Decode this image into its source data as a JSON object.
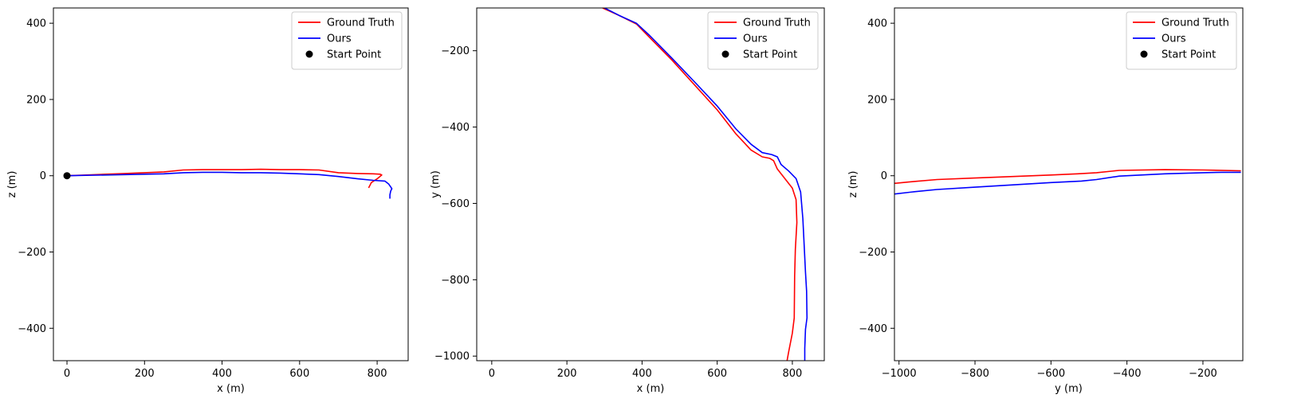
{
  "chart_data": [
    {
      "type": "line",
      "xlabel": "x (m)",
      "ylabel": "z (m)",
      "xlim": [
        -35,
        880
      ],
      "ylim": [
        -485,
        440
      ],
      "xticks": [
        0,
        200,
        400,
        600,
        800
      ],
      "yticks": [
        400,
        200,
        0,
        -200,
        -400
      ],
      "xtick_labels": [
        "0",
        "200",
        "400",
        "600",
        "800"
      ],
      "ytick_labels": [
        "400",
        "200",
        "0",
        "−200",
        "−400"
      ],
      "legend": {
        "position": "top-right"
      },
      "series": [
        {
          "name": "Ground Truth",
          "color": "#ff0000",
          "x": [
            0,
            50,
            100,
            150,
            200,
            250,
            300,
            350,
            400,
            450,
            500,
            550,
            600,
            650,
            700,
            750,
            790,
            808,
            812,
            800,
            785,
            778
          ],
          "y": [
            0,
            2,
            4,
            6,
            8,
            10,
            15,
            16,
            16,
            16,
            17,
            16,
            16,
            15,
            8,
            6,
            5,
            4,
            2,
            -8,
            -18,
            -32
          ]
        },
        {
          "name": "Ours",
          "color": "#0000ff",
          "x": [
            0,
            50,
            100,
            150,
            200,
            250,
            300,
            350,
            400,
            450,
            500,
            550,
            600,
            650,
            700,
            750,
            790,
            820,
            830,
            838,
            835,
            833,
            833
          ],
          "y": [
            0,
            1,
            2,
            3,
            4,
            5,
            8,
            9,
            9,
            8,
            8,
            7,
            5,
            3,
            -2,
            -8,
            -12,
            -14,
            -22,
            -34,
            -40,
            -50,
            -60
          ]
        },
        {
          "name": "Start Point",
          "color": "#000000",
          "marker": "circle",
          "x": [
            0
          ],
          "y": [
            0
          ]
        }
      ]
    },
    {
      "type": "line",
      "xlabel": "x (m)",
      "ylabel": "y (m)",
      "xlim": [
        -40,
        885
      ],
      "ylim": [
        -1012,
        -88
      ],
      "xticks": [
        0,
        200,
        400,
        600,
        800
      ],
      "yticks": [
        -200,
        -400,
        -600,
        -800,
        -1000
      ],
      "xtick_labels": [
        "0",
        "200",
        "400",
        "600",
        "800"
      ],
      "ytick_labels": [
        "−200",
        "−400",
        "−600",
        "−800",
        "−1000"
      ],
      "legend": {
        "position": "top-right"
      },
      "series": [
        {
          "name": "Ground Truth",
          "color": "#ff0000",
          "x": [
            295,
            340,
            385,
            420,
            480,
            540,
            600,
            650,
            690,
            720,
            740,
            750,
            760,
            780,
            800,
            810,
            812,
            808,
            806,
            805,
            800,
            790,
            786
          ],
          "y": [
            -88,
            -108,
            -130,
            -165,
            -225,
            -290,
            -355,
            -418,
            -460,
            -478,
            -482,
            -488,
            -510,
            -535,
            -560,
            -590,
            -650,
            -720,
            -790,
            -900,
            -940,
            -990,
            -1012
          ]
        },
        {
          "name": "Ours",
          "color": "#0000ff",
          "x": [
            300,
            340,
            385,
            420,
            480,
            540,
            600,
            650,
            690,
            720,
            745,
            760,
            770,
            790,
            810,
            822,
            828,
            832,
            835,
            838,
            839,
            835,
            833,
            833
          ],
          "y": [
            -88,
            -108,
            -128,
            -160,
            -220,
            -282,
            -345,
            -405,
            -445,
            -467,
            -472,
            -478,
            -498,
            -515,
            -535,
            -570,
            -640,
            -720,
            -780,
            -830,
            -900,
            -930,
            -980,
            -1012
          ]
        },
        {
          "name": "Start Point",
          "color": "#000000",
          "marker": "circle",
          "x": [],
          "y": []
        }
      ]
    },
    {
      "type": "line",
      "xlabel": "y (m)",
      "ylabel": "z (m)",
      "xlim": [
        -1012,
        -95
      ],
      "ylim": [
        -485,
        440
      ],
      "xticks": [
        -1000,
        -800,
        -600,
        -400,
        -200
      ],
      "yticks": [
        400,
        200,
        0,
        -200,
        -400
      ],
      "xtick_labels": [
        "−1000",
        "−800",
        "−600",
        "−400",
        "−200"
      ],
      "ytick_labels": [
        "400",
        "200",
        "0",
        "−200",
        "−400"
      ],
      "legend": {
        "position": "top-right"
      },
      "series": [
        {
          "name": "Ground Truth",
          "color": "#ff0000",
          "x": [
            -1012,
            -960,
            -900,
            -800,
            -700,
            -600,
            -530,
            -480,
            -420,
            -300,
            -200,
            -100
          ],
          "y": [
            -20,
            -15,
            -10,
            -6,
            -2,
            2,
            5,
            8,
            14,
            16,
            15,
            13
          ]
        },
        {
          "name": "Ours",
          "color": "#0000ff",
          "x": [
            -1012,
            -960,
            -900,
            -800,
            -700,
            -600,
            -520,
            -480,
            -420,
            -300,
            -200,
            -150,
            -100
          ],
          "y": [
            -48,
            -42,
            -36,
            -30,
            -24,
            -18,
            -14,
            -10,
            -1,
            5,
            8,
            9,
            9
          ]
        },
        {
          "name": "Start Point",
          "color": "#000000",
          "marker": "circle",
          "x": [],
          "y": []
        }
      ]
    }
  ]
}
